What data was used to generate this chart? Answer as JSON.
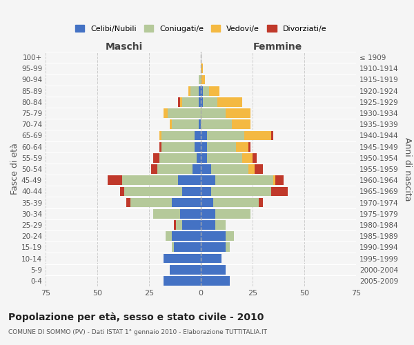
{
  "age_groups": [
    "0-4",
    "5-9",
    "10-14",
    "15-19",
    "20-24",
    "25-29",
    "30-34",
    "35-39",
    "40-44",
    "45-49",
    "50-54",
    "55-59",
    "60-64",
    "65-69",
    "70-74",
    "75-79",
    "80-84",
    "85-89",
    "90-94",
    "95-99",
    "100+"
  ],
  "birth_years": [
    "2005-2009",
    "2000-2004",
    "1995-1999",
    "1990-1994",
    "1985-1989",
    "1980-1984",
    "1975-1979",
    "1970-1974",
    "1965-1969",
    "1960-1964",
    "1955-1959",
    "1950-1954",
    "1945-1949",
    "1940-1944",
    "1935-1939",
    "1930-1934",
    "1925-1929",
    "1920-1924",
    "1915-1919",
    "1910-1914",
    "≤ 1909"
  ],
  "males": {
    "celibi": [
      18,
      15,
      18,
      13,
      14,
      9,
      10,
      14,
      9,
      11,
      4,
      2,
      3,
      3,
      1,
      0,
      1,
      1,
      0,
      0,
      0
    ],
    "coniugati": [
      0,
      0,
      0,
      1,
      3,
      3,
      13,
      20,
      28,
      27,
      17,
      18,
      16,
      16,
      13,
      16,
      8,
      4,
      1,
      0,
      0
    ],
    "vedovi": [
      0,
      0,
      0,
      0,
      0,
      0,
      0,
      0,
      0,
      0,
      0,
      0,
      0,
      1,
      1,
      2,
      1,
      1,
      0,
      0,
      0
    ],
    "divorziati": [
      0,
      0,
      0,
      0,
      0,
      1,
      0,
      2,
      2,
      7,
      3,
      3,
      1,
      0,
      0,
      0,
      1,
      0,
      0,
      0,
      0
    ]
  },
  "females": {
    "nubili": [
      14,
      12,
      10,
      12,
      12,
      7,
      7,
      6,
      5,
      7,
      5,
      3,
      3,
      3,
      0,
      0,
      1,
      1,
      0,
      0,
      0
    ],
    "coniugate": [
      0,
      0,
      0,
      2,
      4,
      5,
      17,
      22,
      29,
      28,
      18,
      17,
      14,
      18,
      15,
      12,
      7,
      3,
      0,
      0,
      0
    ],
    "vedove": [
      0,
      0,
      0,
      0,
      0,
      0,
      0,
      0,
      0,
      1,
      3,
      5,
      6,
      13,
      9,
      12,
      12,
      5,
      2,
      1,
      0
    ],
    "divorziate": [
      0,
      0,
      0,
      0,
      0,
      0,
      0,
      2,
      8,
      4,
      4,
      2,
      1,
      1,
      0,
      0,
      0,
      0,
      0,
      0,
      0
    ]
  },
  "colors": {
    "celibi": "#4472c4",
    "coniugati": "#b5c99a",
    "vedovi": "#f4b942",
    "divorziati": "#c0392b"
  },
  "xlim": 75,
  "title": "Popolazione per età, sesso e stato civile - 2010",
  "subtitle": "COMUNE DI SOMMO (PV) - Dati ISTAT 1° gennaio 2010 - Elaborazione TUTTITALIA.IT",
  "ylabel_left": "Fasce di età",
  "ylabel_right": "Anni di nascita",
  "xlabel_males": "Maschi",
  "xlabel_females": "Femmine",
  "legend_labels": [
    "Celibi/Nubili",
    "Coniugati/e",
    "Vedovi/e",
    "Divorziati/e"
  ],
  "bg_color": "#f5f5f5",
  "grid_color": "#cccccc"
}
